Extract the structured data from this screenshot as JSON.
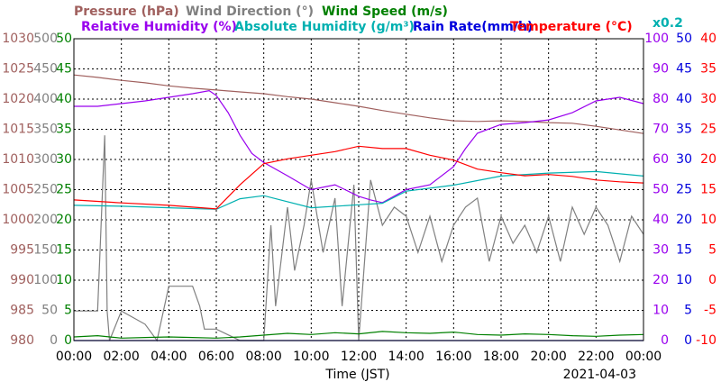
{
  "chart_data": {
    "type": "line",
    "x_label": "Time (JST)",
    "date": "2021-04-03",
    "grid": true,
    "xlim": [
      0,
      24
    ],
    "xticks": [
      {
        "value": 0,
        "label": "00:00"
      },
      {
        "value": 2,
        "label": "02:00"
      },
      {
        "value": 4,
        "label": "04:00"
      },
      {
        "value": 6,
        "label": "06:00"
      },
      {
        "value": 8,
        "label": "08:00"
      },
      {
        "value": 10,
        "label": "10:00"
      },
      {
        "value": 12,
        "label": "12:00"
      },
      {
        "value": 14,
        "label": "14:00"
      },
      {
        "value": 16,
        "label": "16:00"
      },
      {
        "value": 18,
        "label": "18:00"
      },
      {
        "value": 20,
        "label": "20:00"
      },
      {
        "value": 22,
        "label": "22:00"
      },
      {
        "value": 24,
        "label": "00:00"
      }
    ],
    "axes": [
      {
        "side": "left",
        "color": "#a0605e",
        "lim": [
          980,
          1030
        ],
        "ticks": [
          980,
          985,
          990,
          995,
          1000,
          1005,
          1010,
          1015,
          1020,
          1025,
          1030
        ]
      },
      {
        "side": "left",
        "color": "#808080",
        "lim": [
          0,
          500
        ],
        "ticks": [
          0,
          50,
          100,
          150,
          200,
          250,
          300,
          350,
          400,
          450,
          500
        ]
      },
      {
        "side": "left",
        "color": "#008000",
        "lim": [
          0,
          50
        ],
        "ticks": [
          0,
          5,
          10,
          15,
          20,
          25,
          30,
          35,
          40,
          45,
          50
        ]
      },
      {
        "side": "right",
        "color": "#9900ee",
        "lim": [
          0,
          100
        ],
        "ticks": [
          0,
          10,
          20,
          30,
          40,
          50,
          60,
          70,
          80,
          90,
          100
        ]
      },
      {
        "side": "right",
        "color": "#0000dd",
        "lim": [
          0,
          50
        ],
        "ticks": [
          0,
          5,
          10,
          15,
          20,
          25,
          30,
          35,
          40,
          45,
          50
        ]
      },
      {
        "side": "right",
        "color": "#ff0000",
        "lim": [
          -10,
          40
        ],
        "ticks": [
          -10,
          -5,
          0,
          5,
          10,
          15,
          20,
          25,
          30,
          35,
          40
        ]
      }
    ],
    "series": [
      {
        "name": "Pressure (hPa)",
        "color": "#a0605e",
        "axis": 0,
        "x": [
          0,
          1,
          2,
          3,
          4,
          5,
          6,
          7,
          8,
          9,
          10,
          11,
          12,
          13,
          14,
          15,
          16,
          17,
          18,
          19,
          20,
          21,
          22,
          23,
          24
        ],
        "values": [
          1024.0,
          1023.6,
          1023.1,
          1022.7,
          1022.2,
          1021.8,
          1021.5,
          1021.2,
          1020.9,
          1020.4,
          1020.0,
          1019.4,
          1018.8,
          1018.1,
          1017.5,
          1016.9,
          1016.4,
          1016.3,
          1016.4,
          1016.3,
          1016.1,
          1016.0,
          1015.5,
          1014.9,
          1014.3
        ]
      },
      {
        "name": "Wind Direction (°)",
        "color": "#808080",
        "axis": 1,
        "x": [
          0,
          0.5,
          1,
          1.3,
          1.4,
          1.5,
          2,
          3,
          3.5,
          4,
          5,
          5.3,
          5.5,
          6,
          7,
          8,
          8.3,
          8.5,
          9,
          9.3,
          9.7,
          10,
          10.5,
          11,
          11.3,
          11.8,
          12,
          12.5,
          13,
          13.5,
          14,
          14.5,
          15,
          15.5,
          16,
          16.5,
          17,
          17.5,
          18,
          18.5,
          19,
          19.5,
          20,
          20.5,
          21,
          21.5,
          22,
          22.5,
          23,
          23.5,
          24
        ],
        "values": [
          49,
          49,
          49,
          340,
          49,
          0,
          49,
          27,
          0,
          90,
          90,
          57,
          19,
          19,
          0,
          0,
          191,
          57,
          221,
          116,
          191,
          266,
          146,
          236,
          57,
          258,
          0,
          266,
          191,
          221,
          206,
          146,
          206,
          131,
          191,
          221,
          236,
          131,
          206,
          161,
          191,
          146,
          206,
          131,
          221,
          176,
          221,
          191,
          131,
          206,
          176
        ]
      },
      {
        "name": "Wind Speed (m/s)",
        "color": "#008000",
        "axis": 2,
        "x": [
          0,
          1,
          2,
          3,
          4,
          5,
          6,
          7,
          8,
          9,
          10,
          11,
          12,
          13,
          14,
          15,
          16,
          17,
          18,
          19,
          20,
          21,
          22,
          23,
          24
        ],
        "values": [
          0.6,
          0.8,
          0.4,
          0.5,
          0.6,
          0.5,
          0.4,
          0.6,
          0.9,
          1.2,
          1.0,
          1.3,
          1.1,
          1.5,
          1.3,
          1.2,
          1.4,
          1.0,
          0.9,
          1.1,
          1.0,
          0.8,
          0.7,
          0.9,
          1.0
        ]
      },
      {
        "name": "Relative Humidity (%)",
        "color": "#9900ee",
        "axis": 3,
        "x": [
          0,
          1,
          2,
          3,
          4,
          5,
          5.7,
          6,
          6.5,
          7,
          7.5,
          8,
          9,
          10,
          11,
          12,
          12.5,
          13,
          14,
          15,
          16,
          16.5,
          17,
          18,
          19,
          20,
          21,
          22,
          23,
          24
        ],
        "values": [
          77.6,
          77.6,
          78.5,
          79.4,
          80.6,
          81.8,
          82.8,
          81.2,
          75.5,
          68,
          62,
          59,
          54.6,
          50,
          51.6,
          47.8,
          46.6,
          45.7,
          50,
          51.6,
          57.6,
          63.6,
          68.7,
          71.6,
          72.2,
          73.1,
          75.5,
          79.4,
          80.6,
          78.5
        ]
      },
      {
        "name": "Absolute Humidity (g/m³)",
        "color": "#00b0b0",
        "axis": 3,
        "scale": 0.2,
        "scale_label": "x0.2",
        "x": [
          0,
          2,
          4,
          6,
          7,
          8,
          10,
          12,
          13,
          14,
          16,
          18,
          20,
          22,
          24
        ],
        "values": [
          8.96,
          8.9,
          8.8,
          8.7,
          9.4,
          9.6,
          8.8,
          9.0,
          9.1,
          9.9,
          10.3,
          10.9,
          11.1,
          11.2,
          10.9
        ]
      },
      {
        "name": "Rain Rate(mm/h)",
        "color": "#0000dd",
        "axis": 4,
        "x": [
          0,
          24
        ],
        "values": [
          0,
          0
        ]
      },
      {
        "name": "Temperature (°C)",
        "color": "#ff0000",
        "axis": 5,
        "x": [
          0,
          2,
          4,
          6,
          7,
          8,
          9,
          10,
          11,
          12,
          13,
          14,
          15,
          16,
          17,
          18,
          19,
          20,
          21,
          22,
          23,
          24
        ],
        "values": [
          13.3,
          12.8,
          12.4,
          11.8,
          15.8,
          19.3,
          20.1,
          20.7,
          21.3,
          22.2,
          21.8,
          21.8,
          20.7,
          19.9,
          18.4,
          17.8,
          17.3,
          17.5,
          17.2,
          16.6,
          16.3,
          16.1
        ]
      }
    ]
  }
}
